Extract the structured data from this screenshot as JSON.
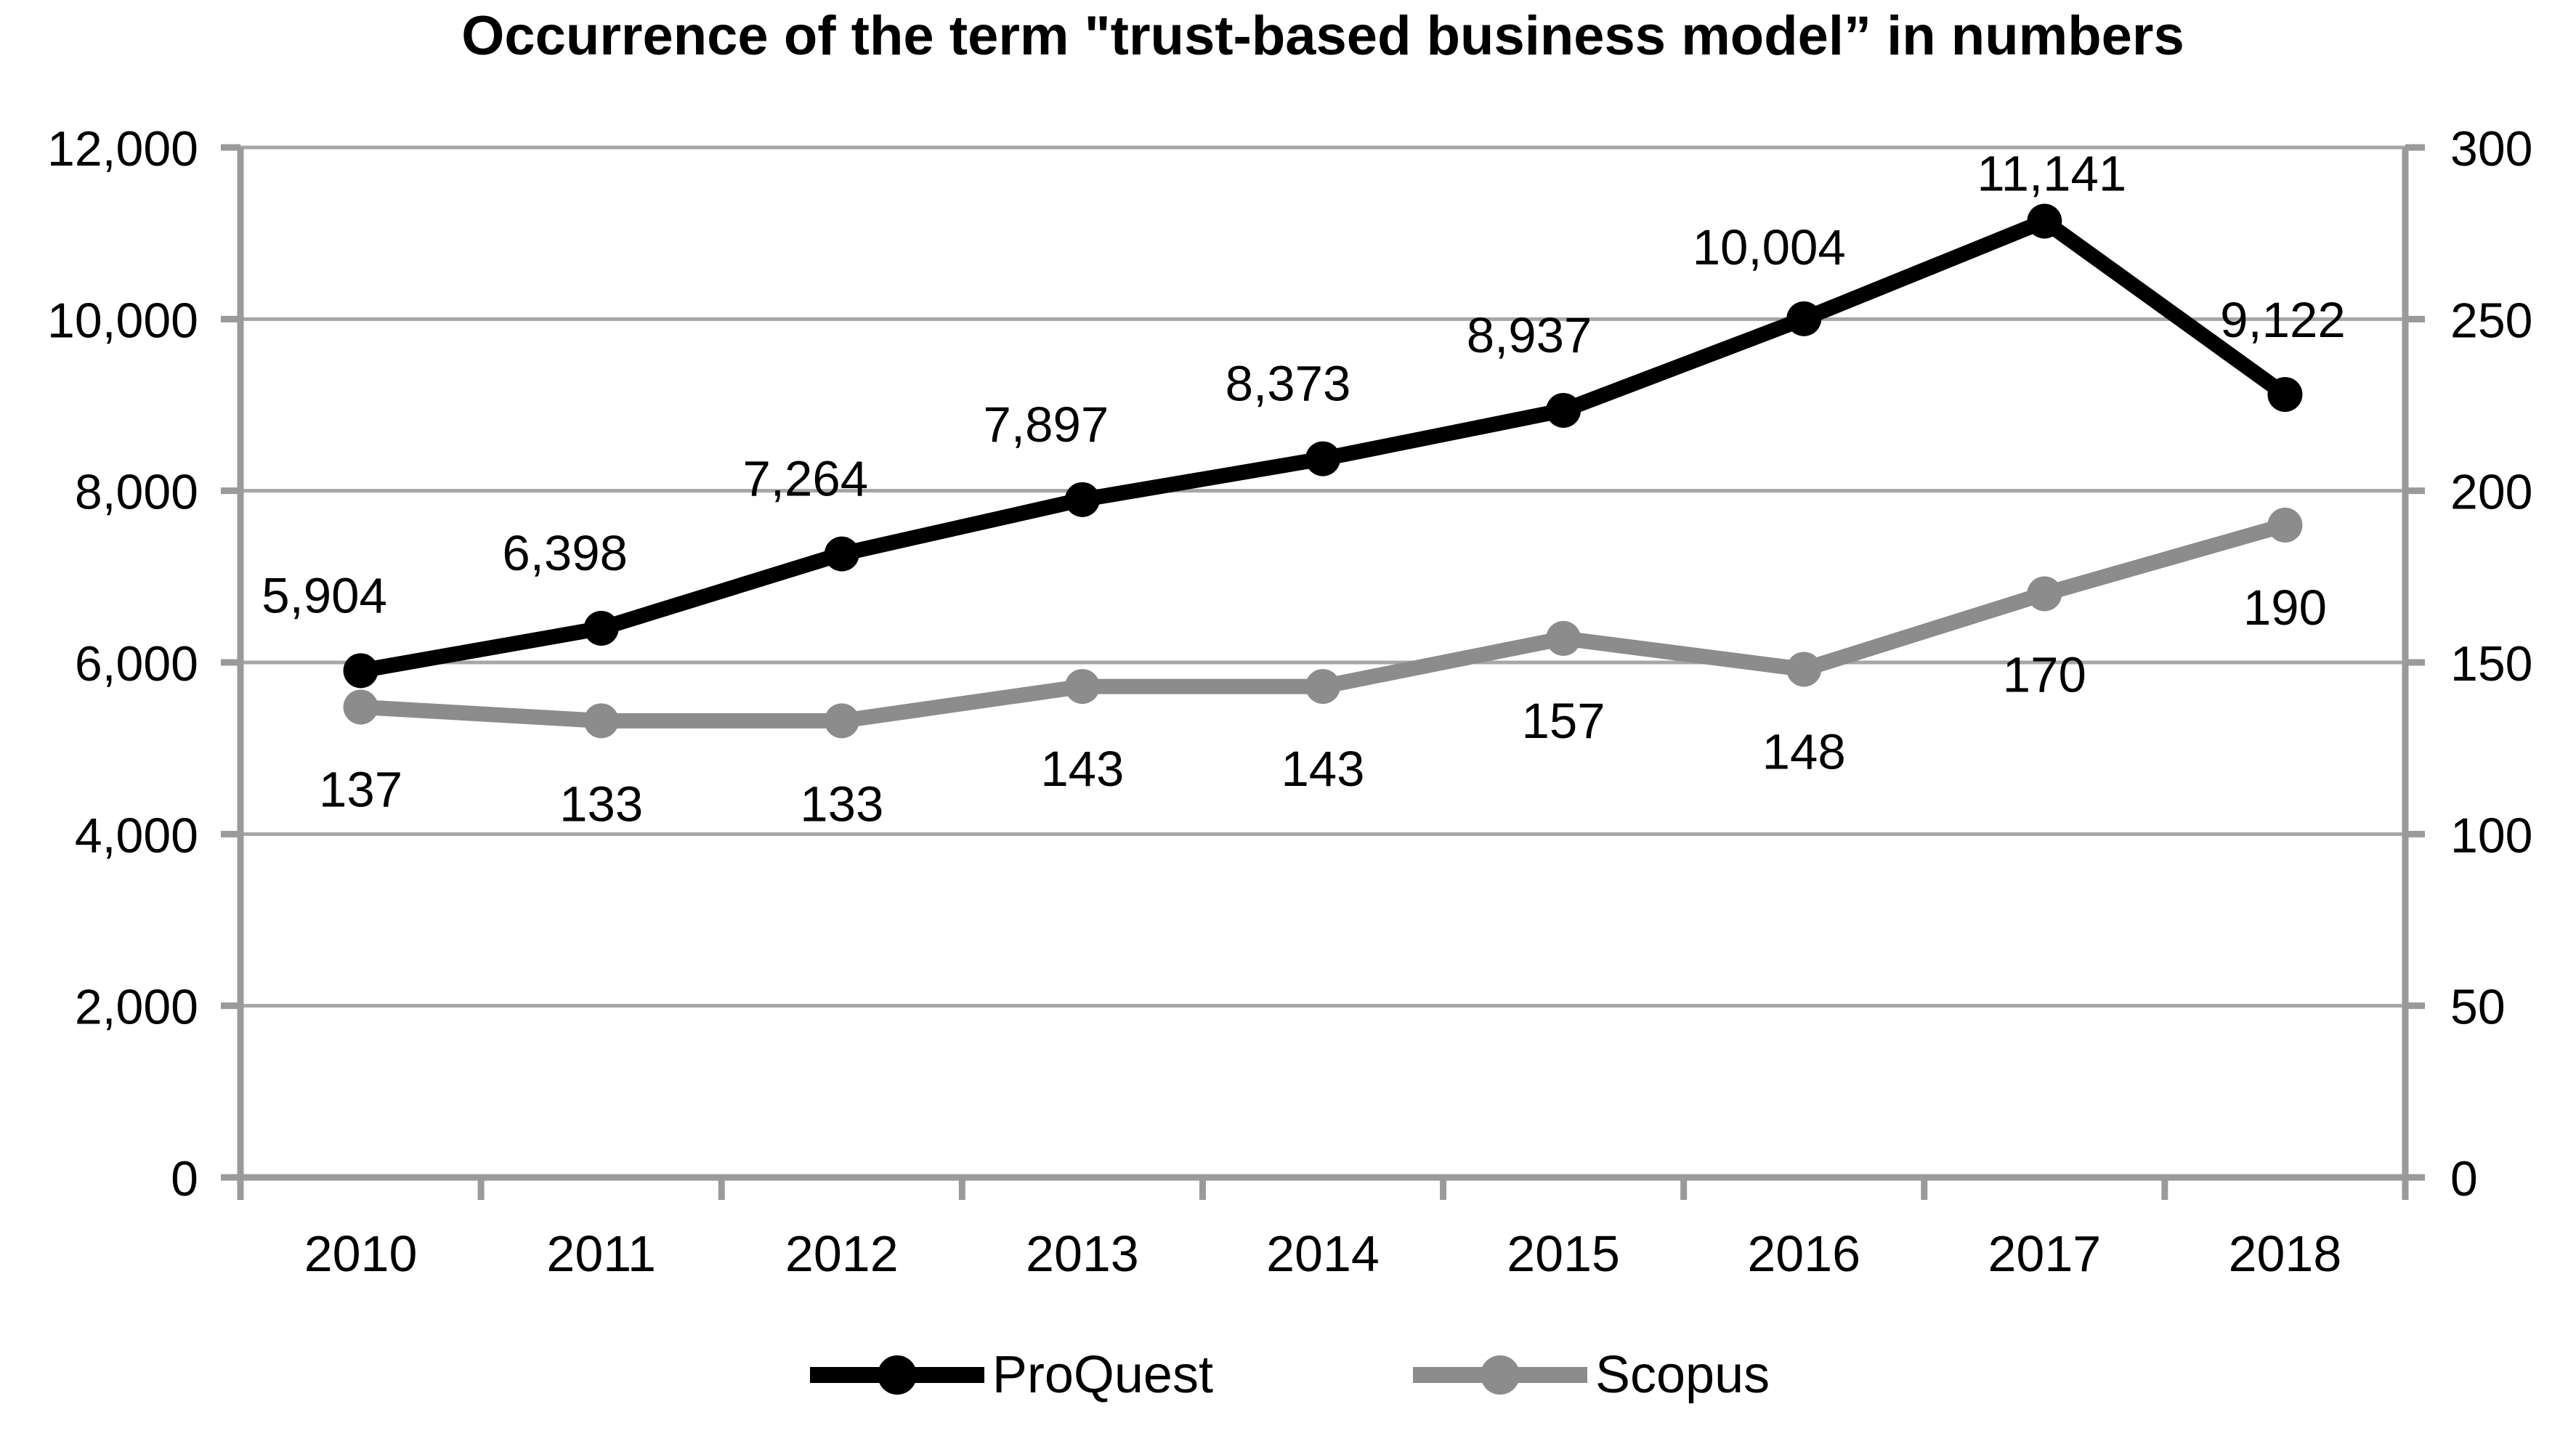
{
  "title": "Occurrence of the term \"trust-based business model” in numbers",
  "chart_data": {
    "type": "line",
    "categories": [
      "2010",
      "2011",
      "2012",
      "2013",
      "2014",
      "2015",
      "2016",
      "2017",
      "2018"
    ],
    "series": [
      {
        "name": "ProQuest",
        "axis": "left",
        "color": "#000000",
        "values": [
          5904,
          6398,
          7264,
          7897,
          8373,
          8937,
          10004,
          11141,
          9122
        ],
        "labels": [
          "5,904",
          "6,398",
          "7,264",
          "7,897",
          "8,373",
          "8,937",
          "10,004",
          "11,141",
          "9,122"
        ]
      },
      {
        "name": "Scopus",
        "axis": "right",
        "color": "#8C8C8C",
        "values": [
          137,
          133,
          133,
          143,
          143,
          157,
          148,
          170,
          190
        ],
        "labels": [
          "137",
          "133",
          "133",
          "143",
          "143",
          "157",
          "148",
          "170",
          "190"
        ]
      }
    ],
    "left_axis": {
      "min": 0,
      "max": 12000,
      "step": 2000,
      "tick_labels": [
        "0",
        "2,000",
        "4,000",
        "6,000",
        "8,000",
        "10,000",
        "12,000"
      ]
    },
    "right_axis": {
      "min": 0,
      "max": 300,
      "step": 50,
      "tick_labels": [
        "0",
        "50",
        "100",
        "150",
        "200",
        "250",
        "300"
      ]
    },
    "grid": true,
    "legend_position": "bottom"
  },
  "legend": {
    "items": [
      {
        "label": "ProQuest",
        "color": "#000000"
      },
      {
        "label": "Scopus",
        "color": "#8C8C8C"
      }
    ]
  },
  "styles": {
    "grid_color": "#A6A6A6",
    "axis_color": "#9A9A9A",
    "background": "#FFFFFF",
    "text_color": "#000000"
  }
}
